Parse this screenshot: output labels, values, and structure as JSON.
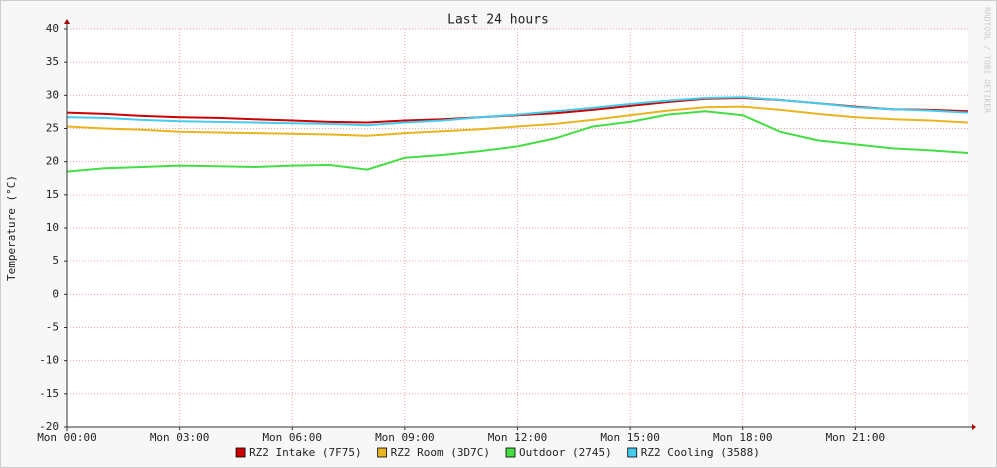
{
  "chart_data": {
    "type": "line",
    "title": "Last 24 hours",
    "ylabel": "Temperature (°C)",
    "watermark": "RRDTOOL / TOBI OETIKER",
    "x": [
      0,
      1,
      2,
      3,
      4,
      5,
      6,
      7,
      8,
      9,
      10,
      11,
      12,
      13,
      14,
      15,
      16,
      17,
      18,
      19,
      20,
      21,
      22,
      23,
      24
    ],
    "xlim": [
      0,
      24
    ],
    "xticks": [
      {
        "value": 0,
        "label": "Mon 00:00"
      },
      {
        "value": 3,
        "label": "Mon 03:00"
      },
      {
        "value": 6,
        "label": "Mon 06:00"
      },
      {
        "value": 9,
        "label": "Mon 09:00"
      },
      {
        "value": 12,
        "label": "Mon 12:00"
      },
      {
        "value": 15,
        "label": "Mon 15:00"
      },
      {
        "value": 18,
        "label": "Mon 18:00"
      },
      {
        "value": 21,
        "label": "Mon 21:00"
      }
    ],
    "ylim": [
      -20,
      40
    ],
    "yticks": [
      -20,
      -15,
      -10,
      -5,
      0,
      5,
      10,
      15,
      20,
      25,
      30,
      35,
      40
    ],
    "grid": true,
    "legend": "bottom",
    "series": [
      {
        "name": "RZ2 Intake (7F75)",
        "color": "#cc0000",
        "values": [
          27.4,
          27.2,
          26.9,
          26.7,
          26.6,
          26.4,
          26.2,
          26.0,
          25.9,
          26.2,
          26.4,
          26.7,
          27.0,
          27.3,
          27.8,
          28.4,
          29.0,
          29.5,
          29.6,
          29.3,
          28.8,
          28.3,
          27.9,
          27.8,
          27.6
        ]
      },
      {
        "name": "RZ2 Room (3D7C)",
        "color": "#e8b420",
        "values": [
          25.3,
          25.0,
          24.8,
          24.5,
          24.4,
          24.3,
          24.2,
          24.1,
          23.9,
          24.3,
          24.6,
          24.9,
          25.3,
          25.7,
          26.3,
          27.0,
          27.7,
          28.2,
          28.3,
          27.8,
          27.2,
          26.7,
          26.4,
          26.2,
          25.9
        ]
      },
      {
        "name": "Outdoor (2745)",
        "color": "#44dd44",
        "values": [
          18.5,
          19.0,
          19.2,
          19.4,
          19.3,
          19.2,
          19.4,
          19.5,
          18.8,
          20.6,
          21.0,
          21.6,
          22.3,
          23.5,
          25.3,
          26.0,
          27.1,
          27.6,
          27.0,
          24.5,
          23.2,
          22.6,
          22.0,
          21.7,
          21.3
        ]
      },
      {
        "name": "RZ2 Cooling (3588)",
        "color": "#44ccee",
        "values": [
          26.7,
          26.6,
          26.3,
          26.1,
          26.0,
          25.9,
          25.8,
          25.7,
          25.5,
          25.9,
          26.2,
          26.7,
          27.1,
          27.6,
          28.1,
          28.7,
          29.2,
          29.6,
          29.7,
          29.3,
          28.8,
          28.2,
          27.9,
          27.7,
          27.4
        ]
      }
    ]
  }
}
